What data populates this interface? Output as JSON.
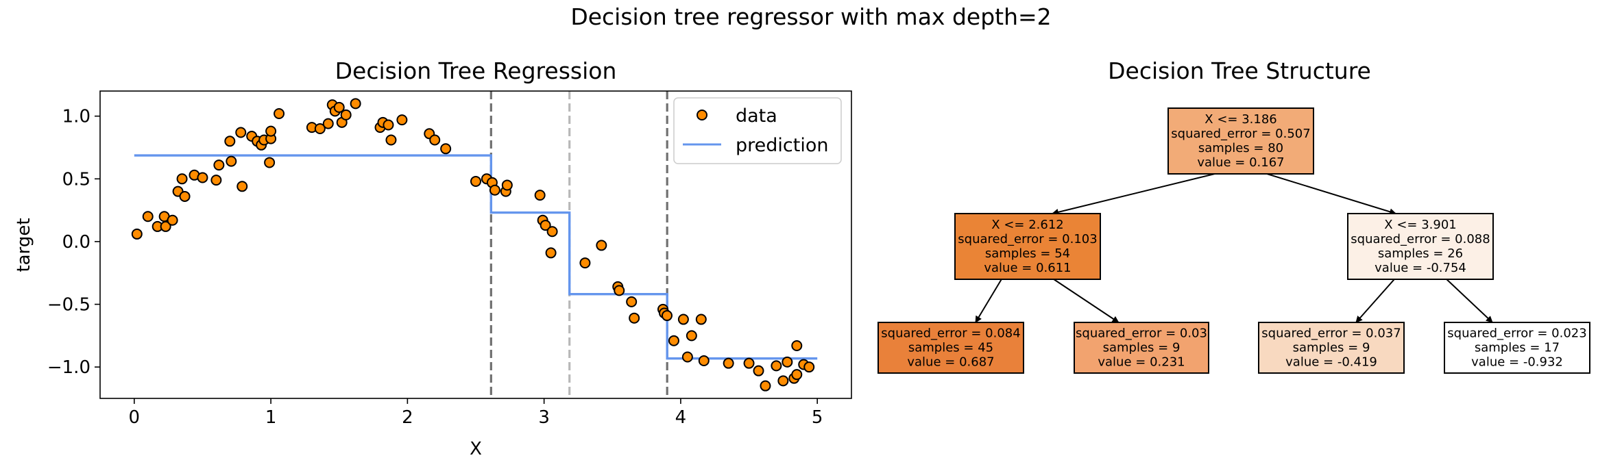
{
  "figure_title": "Decision tree regressor with max depth=2",
  "colors": {
    "point_fill": "#ff8c00",
    "point_edge": "#000000",
    "prediction": "#6495ed",
    "split_root": "#707070",
    "split_secondary": "#b8b8b8",
    "node_root": "#f2ab77",
    "node_left": "#ea8436",
    "node_right": "#fcf0e6",
    "leaf_1": "#e9813a",
    "leaf_2": "#f2a36f",
    "leaf_3": "#f8d9c0",
    "leaf_4": "#ffffff"
  },
  "chart_data": [
    {
      "type": "scatter",
      "title": "Decision Tree Regression",
      "xlabel": "X",
      "ylabel": "target",
      "xlim": [
        -0.25,
        5.25
      ],
      "ylim": [
        -1.25,
        1.2
      ],
      "xticks": [
        0,
        1,
        2,
        3,
        4,
        5
      ],
      "xtick_labels": [
        "0",
        "1",
        "2",
        "3",
        "4",
        "5"
      ],
      "yticks": [
        1.0,
        0.5,
        0.0,
        -0.5,
        -1.0
      ],
      "ytick_labels": [
        "1.0",
        "0.5",
        "0.0",
        "−0.5",
        "−1.0"
      ],
      "grid": false,
      "legend": {
        "position": "top-right",
        "entries": [
          "data",
          "prediction"
        ]
      },
      "split_lines": [
        2.612,
        3.186,
        3.901
      ],
      "series": [
        {
          "name": "data",
          "type": "scatter",
          "points": [
            [
              0.02,
              0.06
            ],
            [
              0.1,
              0.2
            ],
            [
              0.17,
              0.12
            ],
            [
              0.22,
              0.2
            ],
            [
              0.23,
              0.12
            ],
            [
              0.28,
              0.17
            ],
            [
              0.32,
              0.4
            ],
            [
              0.35,
              0.5
            ],
            [
              0.37,
              0.36
            ],
            [
              0.44,
              0.53
            ],
            [
              0.5,
              0.51
            ],
            [
              0.6,
              0.49
            ],
            [
              0.62,
              0.61
            ],
            [
              0.7,
              0.8
            ],
            [
              0.71,
              0.64
            ],
            [
              0.78,
              0.87
            ],
            [
              0.79,
              0.44
            ],
            [
              0.86,
              0.84
            ],
            [
              0.9,
              0.8
            ],
            [
              0.93,
              0.77
            ],
            [
              0.95,
              0.81
            ],
            [
              0.99,
              0.63
            ],
            [
              1.0,
              0.82
            ],
            [
              1.0,
              0.88
            ],
            [
              1.06,
              1.02
            ],
            [
              1.3,
              0.91
            ],
            [
              1.36,
              0.9
            ],
            [
              1.42,
              0.94
            ],
            [
              1.45,
              1.09
            ],
            [
              1.47,
              1.04
            ],
            [
              1.5,
              1.07
            ],
            [
              1.52,
              0.95
            ],
            [
              1.55,
              1.01
            ],
            [
              1.62,
              1.1
            ],
            [
              1.8,
              0.91
            ],
            [
              1.82,
              0.95
            ],
            [
              1.86,
              0.93
            ],
            [
              1.88,
              0.81
            ],
            [
              1.96,
              0.97
            ],
            [
              2.16,
              0.86
            ],
            [
              2.2,
              0.81
            ],
            [
              2.28,
              0.74
            ],
            [
              2.5,
              0.48
            ],
            [
              2.58,
              0.5
            ],
            [
              2.62,
              0.47
            ],
            [
              2.64,
              0.41
            ],
            [
              2.72,
              0.4
            ],
            [
              2.73,
              0.45
            ],
            [
              2.97,
              0.37
            ],
            [
              2.99,
              0.17
            ],
            [
              3.01,
              0.13
            ],
            [
              3.05,
              -0.09
            ],
            [
              3.06,
              0.08
            ],
            [
              3.3,
              -0.17
            ],
            [
              3.42,
              -0.03
            ],
            [
              3.54,
              -0.36
            ],
            [
              3.55,
              -0.39
            ],
            [
              3.64,
              -0.48
            ],
            [
              3.66,
              -0.61
            ],
            [
              3.87,
              -0.54
            ],
            [
              3.88,
              -0.57
            ],
            [
              3.9,
              -0.59
            ],
            [
              3.95,
              -0.79
            ],
            [
              4.02,
              -0.62
            ],
            [
              4.05,
              -0.92
            ],
            [
              4.08,
              -0.75
            ],
            [
              4.15,
              -0.62
            ],
            [
              4.17,
              -0.95
            ],
            [
              4.35,
              -0.97
            ],
            [
              4.5,
              -0.97
            ],
            [
              4.57,
              -1.03
            ],
            [
              4.62,
              -1.15
            ],
            [
              4.7,
              -0.99
            ],
            [
              4.75,
              -1.11
            ],
            [
              4.78,
              -0.96
            ],
            [
              4.83,
              -1.09
            ],
            [
              4.85,
              -1.06
            ],
            [
              4.85,
              -0.83
            ],
            [
              4.9,
              -0.98
            ],
            [
              4.94,
              -1.0
            ]
          ]
        },
        {
          "name": "prediction",
          "type": "line",
          "step_x": [
            0.0,
            2.612,
            2.612,
            3.186,
            3.186,
            3.901,
            3.901,
            5.0
          ],
          "step_y": [
            0.687,
            0.687,
            0.231,
            0.231,
            -0.419,
            -0.419,
            -0.932,
            -0.932
          ]
        }
      ]
    },
    {
      "type": "tree",
      "title": "Decision Tree Structure",
      "nodes": [
        {
          "id": "root",
          "lines": [
            "X <= 3.186",
            "squared_error = 0.507",
            "samples = 80",
            "value = 0.167"
          ],
          "color_key": "node_root"
        },
        {
          "id": "left",
          "lines": [
            "X <= 2.612",
            "squared_error = 0.103",
            "samples = 54",
            "value = 0.611"
          ],
          "color_key": "node_left"
        },
        {
          "id": "right",
          "lines": [
            "X <= 3.901",
            "squared_error = 0.088",
            "samples = 26",
            "value = -0.754"
          ],
          "color_key": "node_right"
        },
        {
          "id": "leaf1",
          "lines": [
            "squared_error = 0.084",
            "samples = 45",
            "value = 0.687"
          ],
          "color_key": "leaf_1"
        },
        {
          "id": "leaf2",
          "lines": [
            "squared_error = 0.03",
            "samples = 9",
            "value = 0.231"
          ],
          "color_key": "leaf_2"
        },
        {
          "id": "leaf3",
          "lines": [
            "squared_error = 0.037",
            "samples = 9",
            "value = -0.419"
          ],
          "color_key": "leaf_3"
        },
        {
          "id": "leaf4",
          "lines": [
            "squared_error = 0.023",
            "samples = 17",
            "value = -0.932"
          ],
          "color_key": "leaf_4"
        }
      ],
      "edges": [
        [
          "root",
          "left"
        ],
        [
          "root",
          "right"
        ],
        [
          "left",
          "leaf1"
        ],
        [
          "left",
          "leaf2"
        ],
        [
          "right",
          "leaf3"
        ],
        [
          "right",
          "leaf4"
        ]
      ]
    }
  ]
}
